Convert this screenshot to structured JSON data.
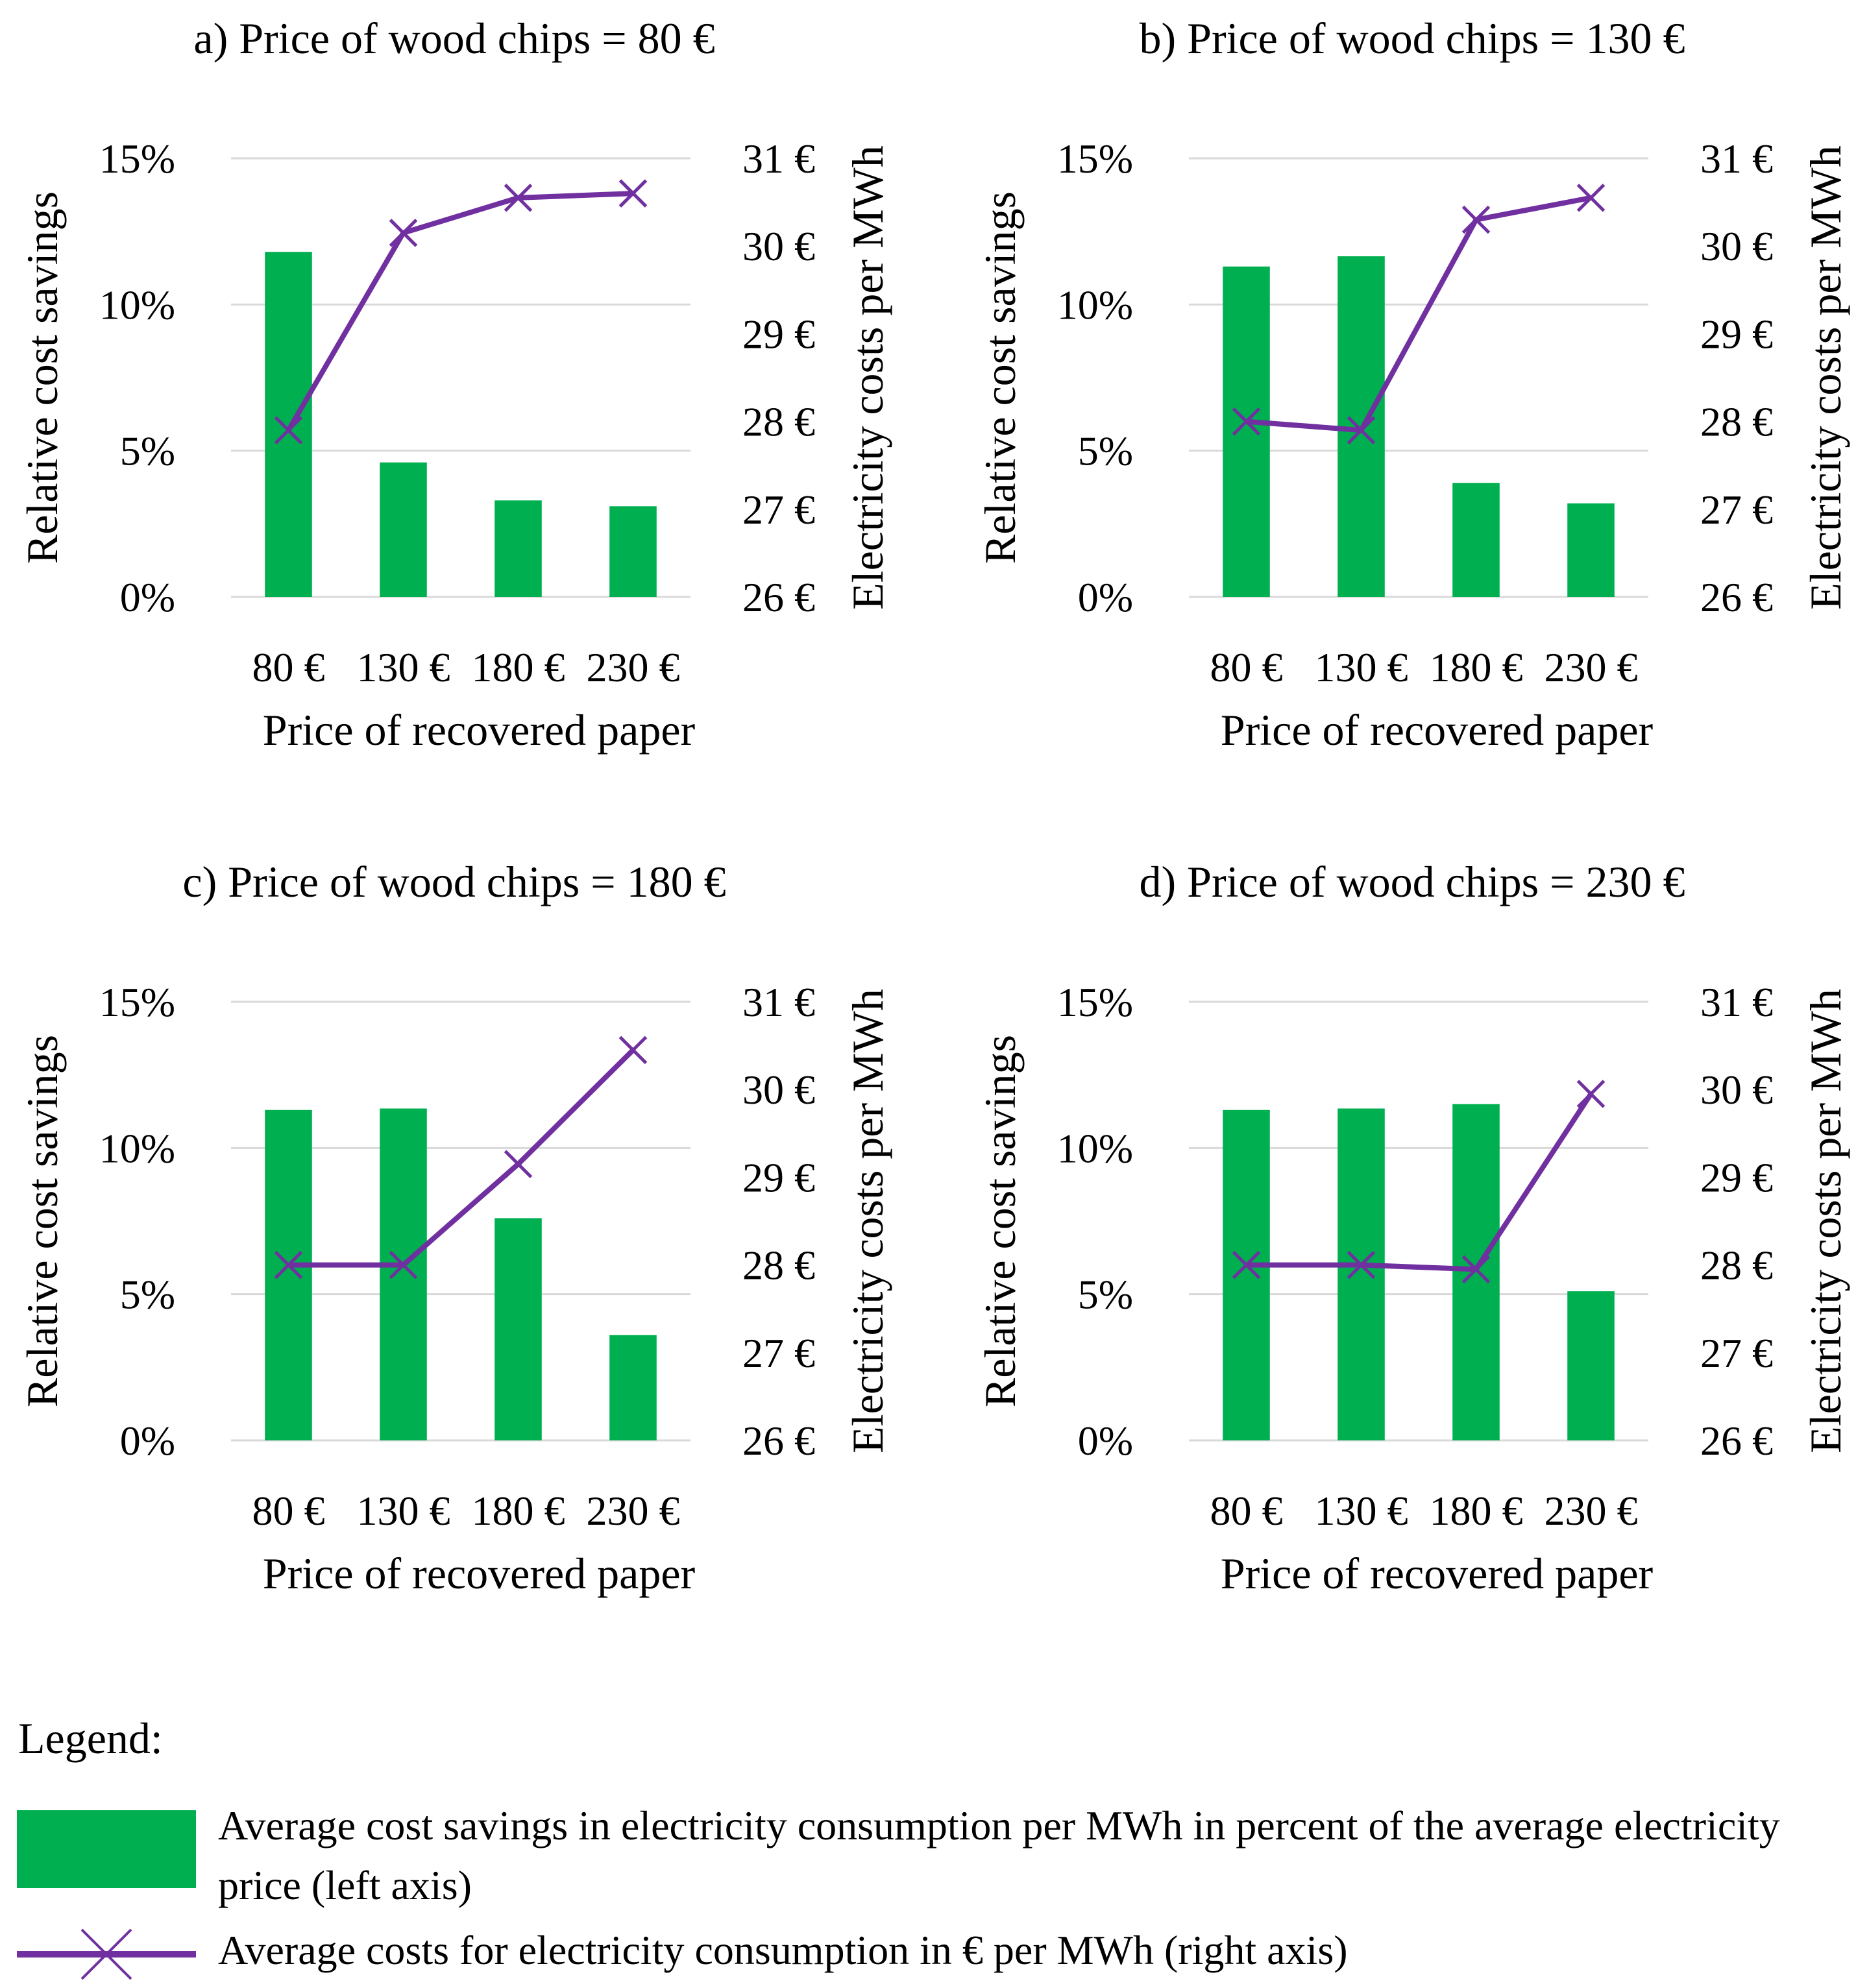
{
  "colors": {
    "bar": "#00b050",
    "line": "#7030a0",
    "grid": "#d9d9d9"
  },
  "chart_data": [
    {
      "type": "bar+line",
      "title": "a) Price of wood chips = 80 €",
      "categories": [
        "80 €",
        "130 €",
        "180 €",
        "230 €"
      ],
      "xlabel": "Price of recovered paper",
      "ylabel_left": "Relative cost savings",
      "ylabel_right": "Electricity costs per MWh",
      "left_ticks": [
        "0%",
        "5%",
        "10%",
        "15%"
      ],
      "right_ticks": [
        "26 €",
        "27 €",
        "28 €",
        "29 €",
        "30 €",
        "31 €"
      ],
      "ylim_left": [
        0,
        15
      ],
      "ylim_right": [
        26,
        31
      ],
      "series": [
        {
          "name": "Average cost savings",
          "axis": "left",
          "values": [
            11.8,
            4.6,
            3.3,
            3.1
          ]
        },
        {
          "name": "Average costs",
          "axis": "right",
          "values": [
            27.9,
            30.15,
            30.55,
            30.6
          ]
        }
      ]
    },
    {
      "type": "bar+line",
      "title": "b) Price of wood chips = 130 €",
      "categories": [
        "80 €",
        "130 €",
        "180 €",
        "230 €"
      ],
      "xlabel": "Price of recovered paper",
      "ylabel_left": "Relative cost savings",
      "ylabel_right": "Electricity costs per MWh",
      "left_ticks": [
        "0%",
        "5%",
        "10%",
        "15%"
      ],
      "right_ticks": [
        "26 €",
        "27 €",
        "28 €",
        "29 €",
        "30 €",
        "31 €"
      ],
      "ylim_left": [
        0,
        15
      ],
      "ylim_right": [
        26,
        31
      ],
      "series": [
        {
          "name": "Average cost savings",
          "axis": "left",
          "values": [
            11.3,
            11.65,
            3.9,
            3.2
          ]
        },
        {
          "name": "Average costs",
          "axis": "right",
          "values": [
            28.0,
            27.9,
            30.3,
            30.55
          ]
        }
      ]
    },
    {
      "type": "bar+line",
      "title": "c) Price of wood chips = 180 €",
      "categories": [
        "80 €",
        "130 €",
        "180 €",
        "230 €"
      ],
      "xlabel": "Price of recovered paper",
      "ylabel_left": "Relative cost savings",
      "ylabel_right": "Electricity costs per MWh",
      "left_ticks": [
        "0%",
        "5%",
        "10%",
        "15%"
      ],
      "right_ticks": [
        "26 €",
        "27 €",
        "28 €",
        "29 €",
        "30 €",
        "31 €"
      ],
      "ylim_left": [
        0,
        15
      ],
      "ylim_right": [
        26,
        31
      ],
      "series": [
        {
          "name": "Average cost savings",
          "axis": "left",
          "values": [
            11.3,
            11.35,
            7.6,
            3.6
          ]
        },
        {
          "name": "Average costs",
          "axis": "right",
          "values": [
            28.0,
            28.0,
            29.15,
            30.45
          ]
        }
      ]
    },
    {
      "type": "bar+line",
      "title": "d) Price of wood chips = 230 €",
      "categories": [
        "80 €",
        "130 €",
        "180 €",
        "230 €"
      ],
      "xlabel": "Price of recovered paper",
      "ylabel_left": "Relative cost savings",
      "ylabel_right": "Electricity costs per MWh",
      "left_ticks": [
        "0%",
        "5%",
        "10%",
        "15%"
      ],
      "right_ticks": [
        "26 €",
        "27 €",
        "28 €",
        "29 €",
        "30 €",
        "31 €"
      ],
      "ylim_left": [
        0,
        15
      ],
      "ylim_right": [
        26,
        31
      ],
      "series": [
        {
          "name": "Average cost savings",
          "axis": "left",
          "values": [
            11.3,
            11.35,
            11.5,
            5.1
          ]
        },
        {
          "name": "Average costs",
          "axis": "right",
          "values": [
            28.0,
            28.0,
            27.95,
            29.95
          ]
        }
      ]
    }
  ],
  "legend": {
    "title": "Legend:",
    "bar_label": "Average cost savings in electricity consumption per MWh in percent of the average electricity price (left axis)",
    "line_label": "Average costs for electricity consumption in € per MWh (right axis)"
  }
}
